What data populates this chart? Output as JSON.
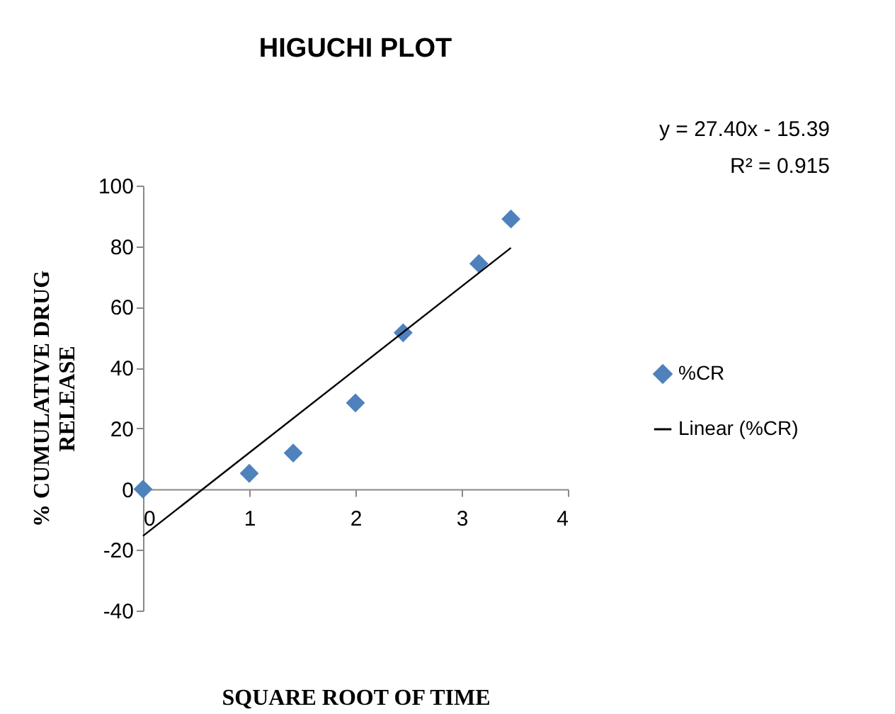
{
  "chart_data": {
    "type": "scatter",
    "title": "HIGUCHI PLOT",
    "xlabel": "SQUARE ROOT OF TIME",
    "ylabel": "% CUMULATIVE DRUG RELEASE",
    "annotations": [
      "y = 27.40x - 15.39",
      "R² = 0.915"
    ],
    "x": [
      0,
      1,
      1.414,
      2,
      2.449,
      3.162,
      3.464
    ],
    "series": [
      {
        "name": "%CR",
        "color": "#4f81bd",
        "marker": "diamond",
        "values": [
          0,
          5.2,
          11.9,
          28.4,
          51.5,
          74.3,
          89
        ]
      },
      {
        "name": "Linear (%CR)",
        "type": "line",
        "color": "#000000",
        "x": [
          0,
          3.464
        ],
        "values": [
          -15.4,
          79.5
        ]
      }
    ],
    "xlim": [
      0,
      4
    ],
    "xticks": [
      0,
      1,
      2,
      3,
      4
    ],
    "ylim": [
      -40,
      100
    ],
    "yticks": [
      -40,
      -20,
      0,
      20,
      40,
      60,
      80,
      100
    ],
    "grid": false,
    "legend": "right"
  }
}
